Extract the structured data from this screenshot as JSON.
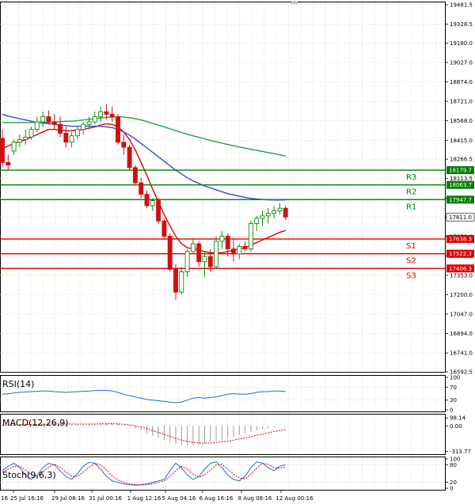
{
  "chart_data": {
    "type": "candlestick",
    "instrument_price_scale": {
      "ylim": [
        16592.5,
        19500.0
      ],
      "y_ticks": [
        "19481.5",
        "19328.5",
        "19180.0",
        "19027.0",
        "18874.0",
        "18721.0",
        "18568.0",
        "18415.0",
        "18266.5",
        "18113.5",
        "17960.5",
        "17811.0",
        "17658.0",
        "17505.0",
        "17353.0",
        "17200.0",
        "17047.0",
        "16894.0",
        "16741.0",
        "16592.5"
      ],
      "grid": true
    },
    "x_ticks": [
      "25 Jul 16:16",
      "29 Jul 08:16",
      "31 Jul 00:16",
      "1 Aug 12:16",
      "5 Aug 04:16",
      "6 Aug 16:16",
      "8 Aug 08:16",
      "12 Aug 00:16"
    ],
    "x_edge_label": "16",
    "current_price": "17811.0",
    "levels": [
      {
        "name": "R3",
        "value": 18179.7,
        "label": "18179.7",
        "color": "#008000"
      },
      {
        "name": "R2",
        "value": 18063.7,
        "label": "18063.7",
        "color": "#008000"
      },
      {
        "name": "R1",
        "value": 17947.7,
        "label": "17947.7",
        "color": "#008000"
      },
      {
        "name": "S1",
        "value": 17638.3,
        "label": "17638.3",
        "color": "#e00000"
      },
      {
        "name": "S2",
        "value": 17522.3,
        "label": "17522.3",
        "color": "#e00000"
      },
      {
        "name": "S3",
        "value": 17406.3,
        "label": "17406.3",
        "color": "#e00000"
      }
    ],
    "candles": [
      [
        18430,
        18500,
        18200,
        18240
      ],
      [
        18240,
        18300,
        18180,
        18220
      ],
      [
        18330,
        18420,
        18300,
        18400
      ],
      [
        18400,
        18460,
        18360,
        18420
      ],
      [
        18420,
        18500,
        18380,
        18440
      ],
      [
        18440,
        18520,
        18420,
        18500
      ],
      [
        18500,
        18600,
        18480,
        18560
      ],
      [
        18560,
        18640,
        18520,
        18600
      ],
      [
        18600,
        18650,
        18540,
        18560
      ],
      [
        18560,
        18620,
        18500,
        18540
      ],
      [
        18540,
        18600,
        18440,
        18470
      ],
      [
        18470,
        18520,
        18360,
        18400
      ],
      [
        18400,
        18480,
        18360,
        18450
      ],
      [
        18450,
        18520,
        18420,
        18500
      ],
      [
        18500,
        18560,
        18460,
        18540
      ],
      [
        18540,
        18600,
        18500,
        18560
      ],
      [
        18560,
        18640,
        18540,
        18600
      ],
      [
        18600,
        18680,
        18560,
        18640
      ],
      [
        18640,
        18700,
        18580,
        18620
      ],
      [
        18620,
        18680,
        18560,
        18600
      ],
      [
        18600,
        18620,
        18380,
        18400
      ],
      [
        18400,
        18460,
        18300,
        18360
      ],
      [
        18360,
        18380,
        18180,
        18200
      ],
      [
        18200,
        18220,
        18060,
        18080
      ],
      [
        18080,
        18120,
        17960,
        17990
      ],
      [
        17990,
        18020,
        17880,
        17900
      ],
      [
        17900,
        17960,
        17860,
        17940
      ],
      [
        17940,
        17960,
        17760,
        17780
      ],
      [
        17780,
        17800,
        17640,
        17660
      ],
      [
        17660,
        17680,
        17380,
        17400
      ],
      [
        17400,
        17440,
        17160,
        17220
      ],
      [
        17220,
        17420,
        17200,
        17380
      ],
      [
        17380,
        17560,
        17340,
        17540
      ],
      [
        17540,
        17640,
        17520,
        17600
      ],
      [
        17600,
        17620,
        17420,
        17460
      ],
      [
        17460,
        17540,
        17340,
        17500
      ],
      [
        17500,
        17560,
        17380,
        17420
      ],
      [
        17420,
        17660,
        17400,
        17620
      ],
      [
        17620,
        17700,
        17560,
        17660
      ],
      [
        17660,
        17680,
        17500,
        17560
      ],
      [
        17560,
        17640,
        17460,
        17520
      ],
      [
        17520,
        17600,
        17480,
        17580
      ],
      [
        17580,
        17620,
        17540,
        17560
      ],
      [
        17560,
        17780,
        17540,
        17760
      ],
      [
        17760,
        17820,
        17700,
        17800
      ],
      [
        17800,
        17860,
        17740,
        17820
      ],
      [
        17820,
        17880,
        17760,
        17840
      ],
      [
        17840,
        17900,
        17800,
        17860
      ],
      [
        17860,
        17920,
        17830,
        17880
      ],
      [
        17880,
        17900,
        17790,
        17811
      ]
    ],
    "series": [
      {
        "name": "",
        "color": "#e00000",
        "values": [
          18350,
          18370,
          18390,
          18405,
          18420,
          18440,
          18460,
          18480,
          18500,
          18500,
          18495,
          18490,
          18490,
          18495,
          18500,
          18510,
          18520,
          18535,
          18545,
          18540,
          18520,
          18480,
          18420,
          18340,
          18240,
          18140,
          18030,
          17930,
          17830,
          17740,
          17660,
          17600,
          17570,
          17560,
          17550,
          17540,
          17530,
          17530,
          17530,
          17540,
          17550,
          17560,
          17570,
          17590,
          17610,
          17630,
          17650,
          17670,
          17690,
          17705
        ]
      },
      {
        "name": "",
        "color": "#3050d0",
        "values": [
          18620,
          18605,
          18595,
          18585,
          18575,
          18565,
          18555,
          18550,
          18545,
          18540,
          18535,
          18530,
          18525,
          18525,
          18525,
          18525,
          18525,
          18525,
          18520,
          18515,
          18500,
          18480,
          18455,
          18425,
          18390,
          18355,
          18320,
          18285,
          18250,
          18215,
          18180,
          18150,
          18120,
          18095,
          18075,
          18055,
          18040,
          18025,
          18010,
          17995,
          17985,
          17975,
          17965,
          17958,
          17952,
          17948,
          17946,
          17945,
          17945,
          17946
        ]
      },
      {
        "name": "",
        "color": "#20a050",
        "values": [
          18555,
          18555,
          18555,
          18555,
          18555,
          18555,
          18555,
          18555,
          18555,
          18560,
          18560,
          18565,
          18565,
          18570,
          18575,
          18580,
          18585,
          18590,
          18595,
          18598,
          18600,
          18598,
          18592,
          18585,
          18575,
          18562,
          18548,
          18534,
          18520,
          18505,
          18490,
          18476,
          18462,
          18450,
          18438,
          18426,
          18414,
          18403,
          18392,
          18382,
          18372,
          18362,
          18353,
          18344,
          18336,
          18327,
          18318,
          18310,
          18300,
          18290
        ]
      }
    ],
    "rsi": {
      "title": "RSI(14)",
      "y_ticks": [
        "100",
        "70",
        "30",
        "0"
      ],
      "ylim": [
        0,
        100
      ],
      "values": [
        48,
        50,
        52,
        54,
        55,
        56,
        57,
        58,
        58,
        56,
        55,
        54,
        55,
        56,
        57,
        58,
        59,
        60,
        60,
        58,
        54,
        48,
        44,
        40,
        36,
        32,
        30,
        28,
        26,
        24,
        22,
        24,
        30,
        36,
        38,
        36,
        38,
        40,
        44,
        48,
        50,
        48,
        48,
        50,
        54,
        56,
        56,
        58,
        58,
        56
      ],
      "color": "#1e6fd0"
    },
    "macd": {
      "title": "MACD(12,26,9)",
      "y_ticks": [
        "98.14",
        "0.00",
        "-313.77"
      ],
      "ylim": [
        -330,
        120
      ],
      "histogram": [
        10,
        12,
        15,
        18,
        20,
        22,
        25,
        28,
        30,
        30,
        28,
        25,
        22,
        20,
        22,
        25,
        28,
        30,
        32,
        30,
        22,
        10,
        -10,
        -35,
        -60,
        -90,
        -120,
        -150,
        -175,
        -200,
        -225,
        -240,
        -245,
        -240,
        -230,
        -215,
        -200,
        -185,
        -170,
        -150,
        -130,
        -110,
        -95,
        -75,
        -55,
        -40,
        -28,
        -15,
        -5,
        5
      ],
      "signal": [
        8,
        9,
        10,
        12,
        14,
        16,
        18,
        20,
        22,
        23,
        24,
        24,
        23,
        22,
        22,
        22,
        23,
        24,
        25,
        26,
        24,
        20,
        12,
        0,
        -15,
        -35,
        -58,
        -82,
        -106,
        -130,
        -154,
        -175,
        -192,
        -205,
        -212,
        -214,
        -212,
        -206,
        -198,
        -188,
        -176,
        -162,
        -148,
        -134,
        -118,
        -102,
        -86,
        -70,
        -56,
        -44
      ],
      "histogram_color": "#9a9a9a",
      "signal_color": "#e00000"
    },
    "stoch": {
      "title": "Stoch(9,6,3)",
      "y_ticks": [
        "100",
        "80",
        "20",
        "0"
      ],
      "ylim": [
        0,
        100
      ],
      "k": [
        60,
        75,
        85,
        70,
        45,
        30,
        45,
        70,
        85,
        80,
        60,
        40,
        30,
        50,
        75,
        88,
        85,
        65,
        40,
        25,
        20,
        15,
        12,
        10,
        12,
        15,
        20,
        25,
        30,
        60,
        85,
        70,
        45,
        30,
        40,
        65,
        85,
        90,
        70,
        45,
        30,
        25,
        40,
        70,
        90,
        85,
        70,
        60,
        75,
        80
      ],
      "d": [
        55,
        65,
        75,
        75,
        62,
        45,
        40,
        55,
        72,
        82,
        72,
        55,
        40,
        40,
        55,
        72,
        84,
        80,
        62,
        42,
        28,
        20,
        15,
        12,
        11,
        12,
        15,
        20,
        25,
        40,
        60,
        75,
        65,
        48,
        38,
        45,
        62,
        80,
        82,
        65,
        48,
        35,
        32,
        48,
        68,
        85,
        82,
        70,
        68,
        72
      ],
      "k_color": "#1e6fd0",
      "d_color": "#e00000"
    }
  }
}
